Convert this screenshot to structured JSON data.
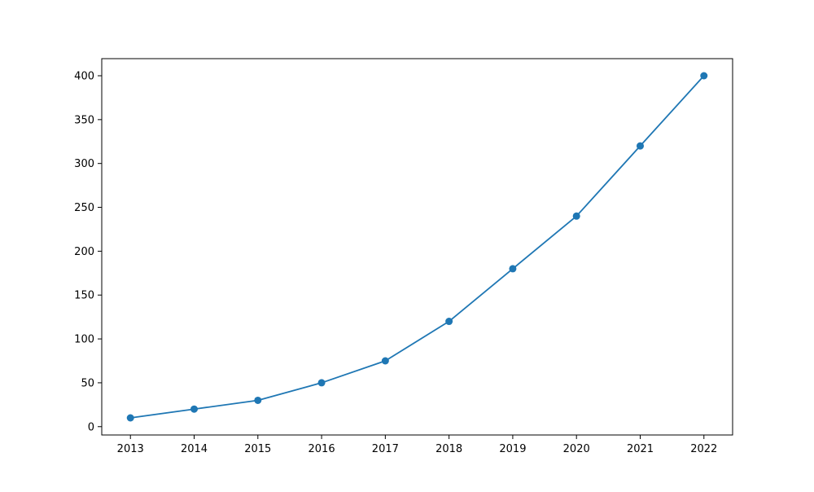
{
  "chart_data": {
    "type": "line",
    "title": "",
    "xlabel": "",
    "ylabel": "",
    "x": [
      2013,
      2014,
      2015,
      2016,
      2017,
      2018,
      2019,
      2020,
      2021,
      2022
    ],
    "series": [
      {
        "values": [
          10,
          20,
          30,
          50,
          75,
          120,
          180,
          240,
          320,
          400
        ],
        "color": "#1f77b4",
        "marker": "circle"
      }
    ],
    "xlim": [
      2012.55,
      2022.45
    ],
    "ylim": [
      -9.5,
      419.5
    ],
    "x_ticks": [
      2013,
      2014,
      2015,
      2016,
      2017,
      2018,
      2019,
      2020,
      2021,
      2022
    ],
    "y_ticks": [
      0,
      50,
      100,
      150,
      200,
      250,
      300,
      350,
      400
    ],
    "grid": false,
    "legend": "none"
  }
}
